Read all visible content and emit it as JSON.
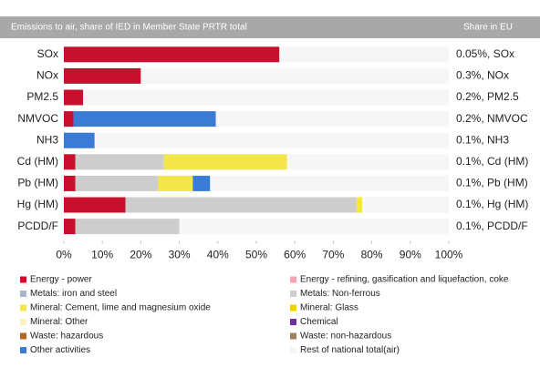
{
  "chart_data": {
    "type": "stacked_hbar",
    "title": "Emissions to air, share of IED in Member State PRTR total",
    "share_title": "Share in EU",
    "categories": [
      "SOx",
      "NOx",
      "PM2.5",
      "NMVOC",
      "NH3",
      "Cd (HM)",
      "Pb (HM)",
      "Hg (HM)",
      "PCDD/F"
    ],
    "share_labels": [
      "0.05%, SOx",
      "0.3%, NOx",
      "0.2%, PM2.5",
      "0.2%, NMVOC",
      "0.1%, NH3",
      "0.1%, Cd (HM)",
      "0.1%, Pb (HM)",
      "0.1%, Hg (HM)",
      "0.1%, PCDD/F"
    ],
    "series": [
      {
        "name": "Energy - power",
        "color": "#c8102e",
        "values": [
          56,
          20,
          5,
          2.5,
          0,
          3,
          3,
          16,
          3
        ]
      },
      {
        "name": "Energy - refining, gasification and liquefaction, coke",
        "color": "#f4a6b4",
        "values": [
          0,
          0,
          0,
          0,
          0,
          0,
          0,
          0,
          0
        ]
      },
      {
        "name": "Metals: iron and steel",
        "color": "#a9b8c8",
        "values": [
          0,
          0,
          0,
          0,
          0,
          0,
          0,
          0,
          0
        ]
      },
      {
        "name": "Metals: Non-ferrous",
        "color": "#cdcdcd",
        "values": [
          0,
          0,
          0,
          0,
          0,
          23,
          21.5,
          60,
          27
        ]
      },
      {
        "name": "Mineral: Cement, lime and magnesium oxide",
        "color": "#f3e54a",
        "values": [
          0,
          0,
          0,
          0,
          0,
          32,
          9,
          1.5,
          0
        ]
      },
      {
        "name": "Mineral: Glass",
        "color": "#f0d000",
        "values": [
          0,
          0,
          0,
          0,
          0,
          0,
          0,
          0,
          0
        ]
      },
      {
        "name": "Mineral: Other",
        "color": "#fbf3c0",
        "values": [
          0,
          0,
          0,
          0,
          0,
          0,
          0,
          0,
          0
        ]
      },
      {
        "name": "Chemical",
        "color": "#7030a0",
        "values": [
          0,
          0,
          0,
          0,
          0,
          0,
          0,
          0,
          0
        ]
      },
      {
        "name": "Waste: hazardous",
        "color": "#b9651f",
        "values": [
          0,
          0,
          0,
          0,
          0,
          0,
          0,
          0,
          0
        ]
      },
      {
        "name": "Waste: non-hazardous",
        "color": "#a08060",
        "values": [
          0,
          0,
          0,
          0,
          0,
          0,
          0,
          0,
          0
        ]
      },
      {
        "name": "Other activities",
        "color": "#3a7bd5",
        "values": [
          0,
          0,
          0,
          37,
          8,
          0,
          4.5,
          0,
          0
        ]
      },
      {
        "name": "Rest of national total(air)",
        "color": "#f6f6f6",
        "values": [
          44,
          80,
          95,
          60.5,
          92,
          42,
          62,
          22.5,
          70
        ]
      }
    ],
    "xlim": [
      0,
      100
    ],
    "xticks": [
      {
        "value": 0,
        "label": "0%"
      },
      {
        "value": 10,
        "label": "10%"
      },
      {
        "value": 20,
        "label": "20%"
      },
      {
        "value": 30,
        "label": "30%"
      },
      {
        "value": 40,
        "label": "40%"
      },
      {
        "value": 50,
        "label": "50%"
      },
      {
        "value": 60,
        "label": "60%"
      },
      {
        "value": 70,
        "label": "70%"
      },
      {
        "value": 80,
        "label": "80%"
      },
      {
        "value": 90,
        "label": "90%"
      },
      {
        "value": 100,
        "label": "100%"
      }
    ]
  }
}
